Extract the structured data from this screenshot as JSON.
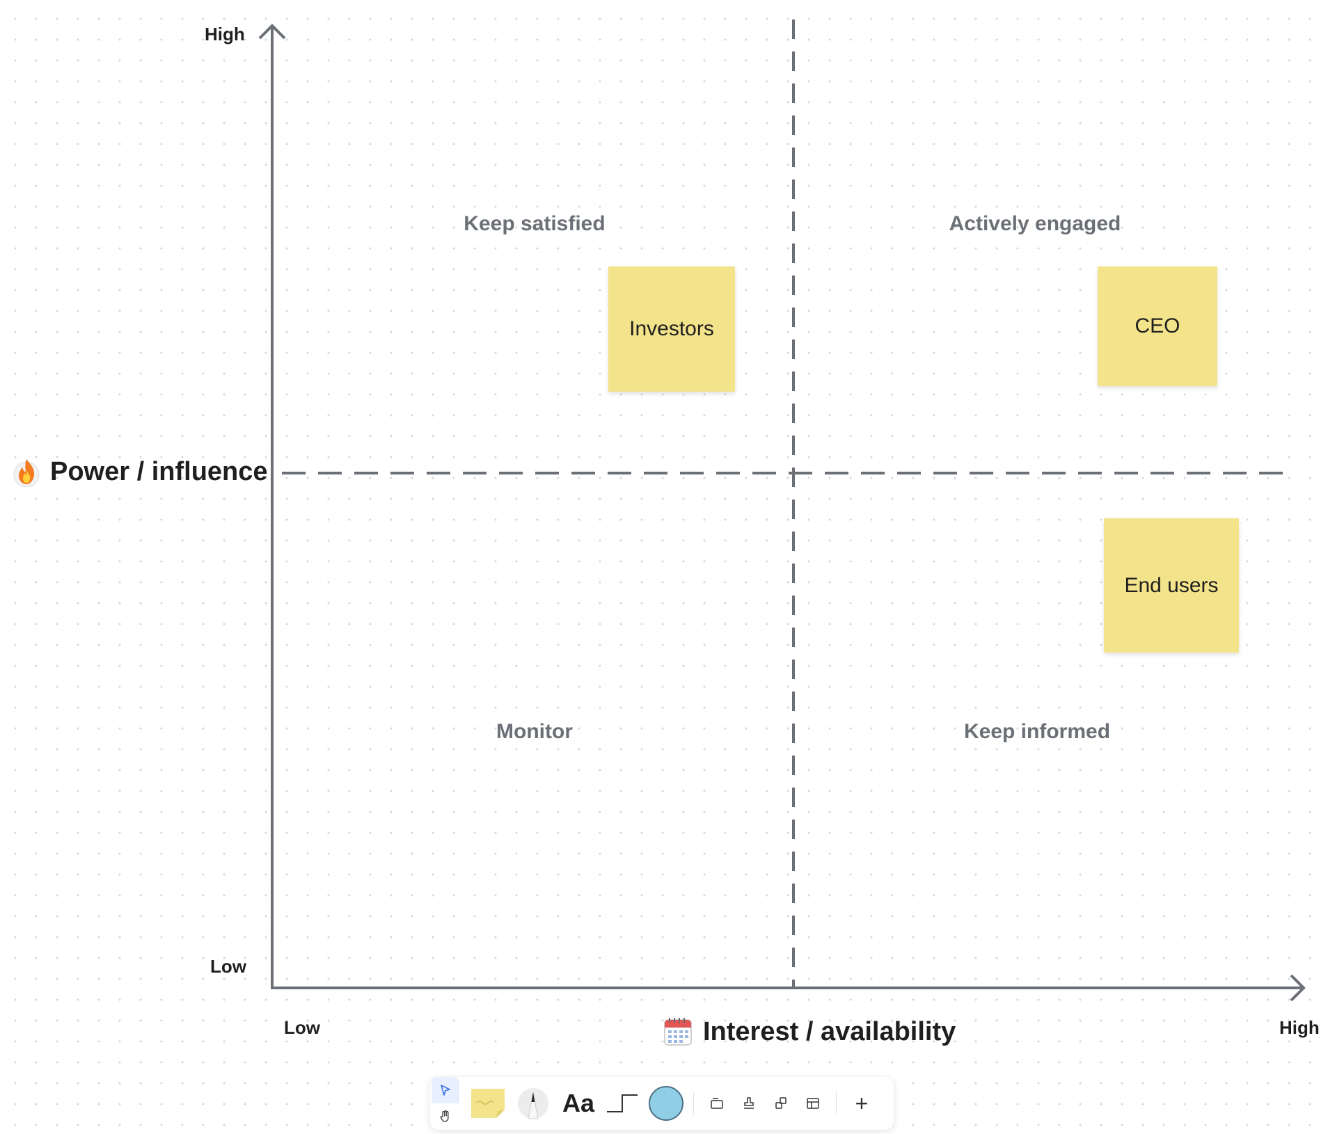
{
  "matrix": {
    "y_axis": {
      "title": "Power / influence",
      "icon": "fire-icon",
      "high_label": "High",
      "low_label": "Low"
    },
    "x_axis": {
      "title": "Interest / availability",
      "icon": "calendar-icon",
      "low_label": "Low",
      "high_label": "High"
    },
    "quadrants": {
      "top_left": "Keep satisfied",
      "top_right": "Actively engaged",
      "bottom_left": "Monitor",
      "bottom_right": "Keep informed"
    },
    "stickies": [
      {
        "text": "Investors",
        "color": "#f3e38b"
      },
      {
        "text": "CEO",
        "color": "#f3e38b"
      },
      {
        "text": "End users",
        "color": "#f3e38b"
      }
    ],
    "line_color": "#6b6f76"
  },
  "toolbar": {
    "tools": [
      "select-tool",
      "hand-tool",
      "sticky-note-tool",
      "pen-tool",
      "text-tool",
      "connector-tool",
      "shape-tool",
      "frame-tool",
      "stamp-tool",
      "component-tool",
      "table-tool",
      "add-more-tool"
    ],
    "text_tool_label": "Aa",
    "shape_color": "#8fcfe6",
    "add_label": "+"
  }
}
